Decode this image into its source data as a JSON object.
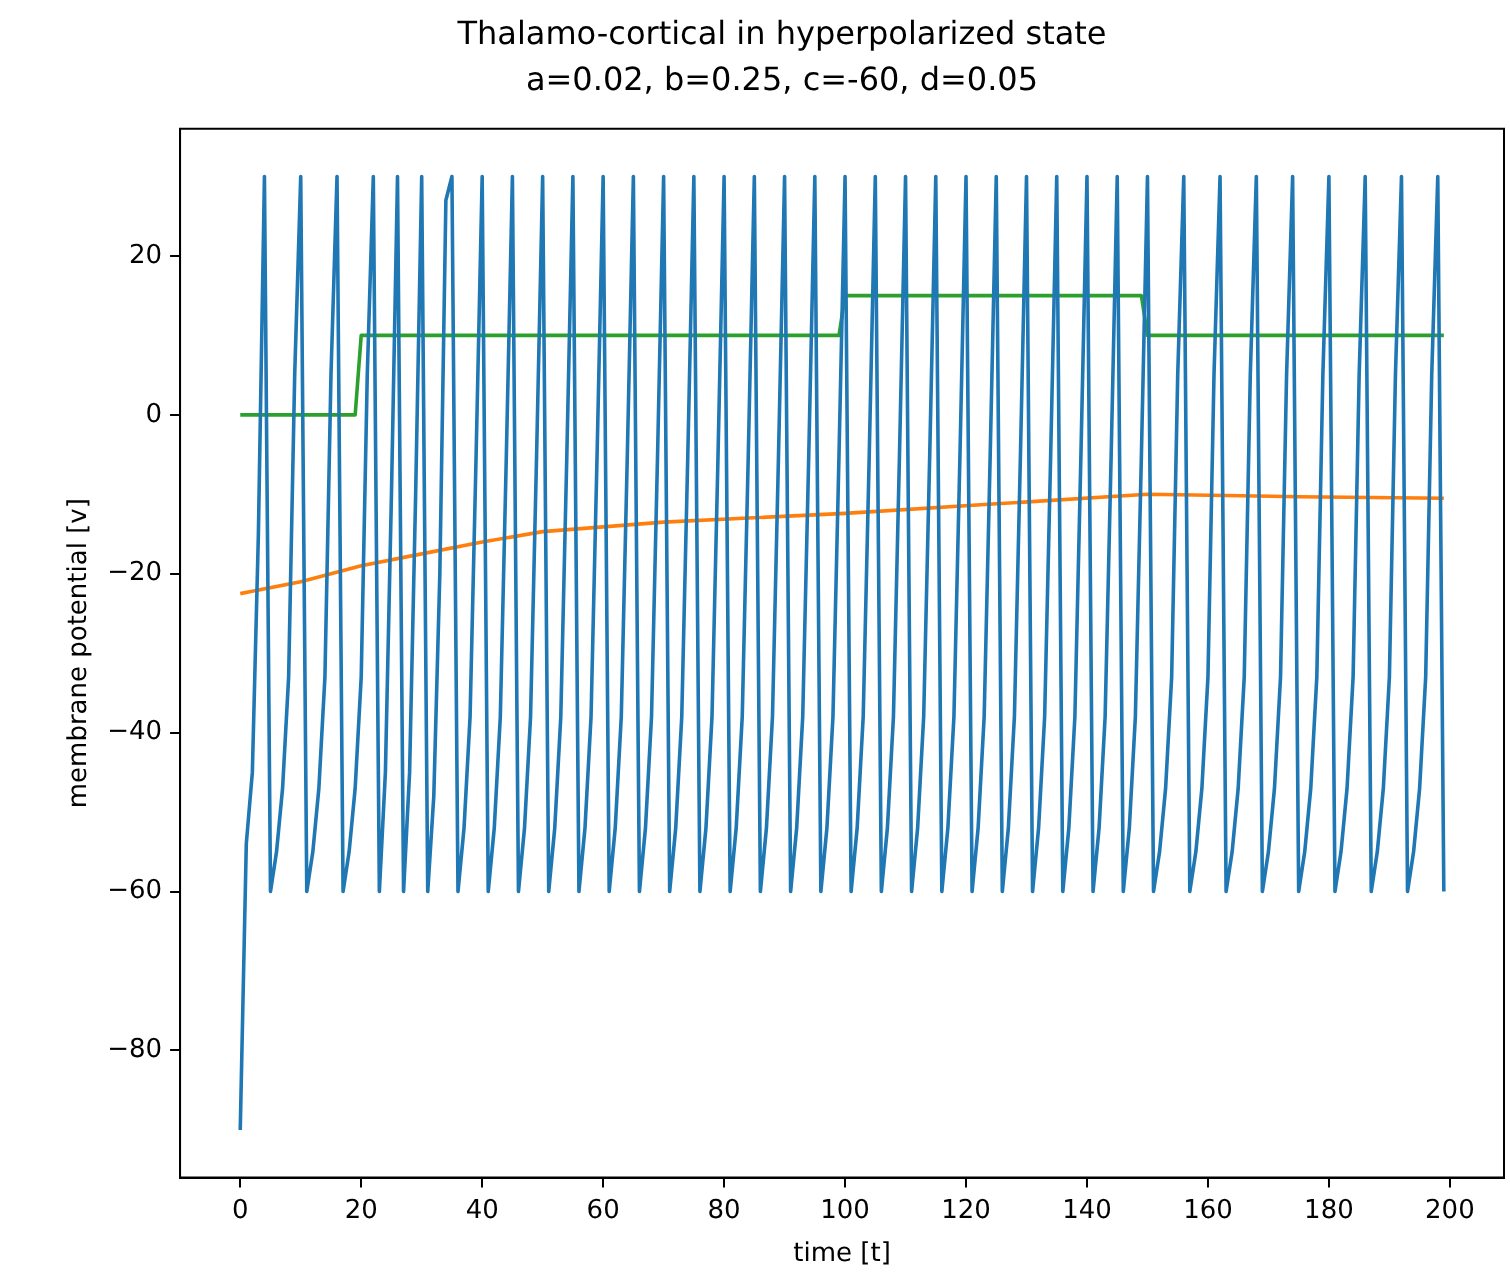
{
  "chart_data": {
    "type": "line",
    "title": "Thalamo-cortical in hyperpolarized state",
    "subtitle": "a=0.02, b=0.25, c=-60, d=0.05",
    "xlabel": "time [t]",
    "ylabel": "membrane potential [v]",
    "x": [
      0,
      1,
      2,
      3,
      4,
      5,
      6,
      7,
      8,
      9,
      10,
      11,
      12,
      13,
      14,
      15,
      16,
      17,
      18,
      19,
      20,
      21,
      22,
      23,
      24,
      25,
      26,
      27,
      28,
      29,
      30,
      31,
      32,
      33,
      34,
      35,
      36,
      37,
      38,
      39,
      40,
      41,
      42,
      43,
      44,
      45,
      46,
      47,
      48,
      49,
      50,
      51,
      52,
      53,
      54,
      55,
      56,
      57,
      58,
      59,
      60,
      61,
      62,
      63,
      64,
      65,
      66,
      67,
      68,
      69,
      70,
      71,
      72,
      73,
      74,
      75,
      76,
      77,
      78,
      79,
      80,
      81,
      82,
      83,
      84,
      85,
      86,
      87,
      88,
      89,
      90,
      91,
      92,
      93,
      94,
      95,
      96,
      97,
      98,
      99,
      100,
      101,
      102,
      103,
      104,
      105,
      106,
      107,
      108,
      109,
      110,
      111,
      112,
      113,
      114,
      115,
      116,
      117,
      118,
      119,
      120,
      121,
      122,
      123,
      124,
      125,
      126,
      127,
      128,
      129,
      130,
      131,
      132,
      133,
      134,
      135,
      136,
      137,
      138,
      139,
      140,
      141,
      142,
      143,
      144,
      145,
      146,
      147,
      148,
      149,
      150,
      151,
      152,
      153,
      154,
      155,
      156,
      157,
      158,
      159,
      160,
      161,
      162,
      163,
      164,
      165,
      166,
      167,
      168,
      169,
      170,
      171,
      172,
      173,
      174,
      175,
      176,
      177,
      178,
      179,
      180,
      181,
      182,
      183,
      184,
      185,
      186,
      187,
      188,
      189,
      190,
      191,
      192,
      193,
      194,
      195,
      196,
      197,
      198,
      199
    ],
    "series": [
      {
        "color": "#1f77b4",
        "values": [
          -90,
          -54,
          -45,
          -15,
          30,
          -60,
          -55,
          -47,
          -33,
          5,
          30,
          -60,
          -55,
          -47,
          -33,
          5,
          30,
          -60,
          -55,
          -47,
          -33,
          5,
          30,
          -60,
          -45,
          -10,
          30,
          -60,
          -45,
          -10,
          30,
          -60,
          -48,
          -20,
          27,
          30,
          -60,
          -52,
          -38,
          -5,
          30,
          -60,
          -52,
          -38,
          -5,
          30,
          -60,
          -52,
          -38,
          -5,
          30,
          -60,
          -52,
          -38,
          -5,
          30,
          -60,
          -52,
          -38,
          -5,
          30,
          -60,
          -52,
          -38,
          -5,
          30,
          -60,
          -52,
          -38,
          -5,
          30,
          -60,
          -52,
          -38,
          -5,
          30,
          -60,
          -52,
          -38,
          -5,
          30,
          -60,
          -52,
          -38,
          -5,
          30,
          -60,
          -52,
          -38,
          -5,
          30,
          -60,
          -52,
          -38,
          -5,
          30,
          -60,
          -52,
          -38,
          -5,
          30,
          -60,
          -52,
          -38,
          -5,
          30,
          -60,
          -52,
          -38,
          -5,
          30,
          -60,
          -52,
          -38,
          -5,
          30,
          -60,
          -52,
          -38,
          -5,
          30,
          -60,
          -52,
          -38,
          -5,
          30,
          -60,
          -52,
          -38,
          -5,
          30,
          -60,
          -52,
          -38,
          -5,
          30,
          -60,
          -52,
          -38,
          -5,
          30,
          -60,
          -52,
          -38,
          -5,
          30,
          -60,
          -52,
          -38,
          -5,
          30,
          -60,
          -55,
          -47,
          -33,
          5,
          30,
          -60,
          -55,
          -47,
          -33,
          5,
          30,
          -60,
          -55,
          -47,
          -33,
          5,
          30,
          -60,
          -55,
          -47,
          -33,
          5,
          30,
          -60,
          -55,
          -47,
          -33,
          5,
          30,
          -60,
          -55,
          -47,
          -33,
          5,
          30,
          -60,
          -55,
          -47,
          -33,
          5,
          30,
          -60,
          -55,
          -47,
          -33,
          5,
          30,
          -60
        ]
      },
      {
        "color": "#ff7f0e",
        "x": [
          0,
          10,
          20,
          30,
          40,
          50,
          70,
          100,
          125,
          150,
          175,
          199
        ],
        "values": [
          -22.5,
          -21,
          -19,
          -17.5,
          -16,
          -14.7,
          -13.5,
          -12.4,
          -11.2,
          -10,
          -10.3,
          -10.5
        ]
      },
      {
        "color": "#2ca02c",
        "x": [
          0,
          19,
          20,
          99,
          100,
          149,
          150,
          199
        ],
        "values": [
          0,
          0,
          10,
          10,
          15,
          15,
          10,
          10
        ]
      }
    ],
    "xlim": [
      -9.95,
      208.95
    ],
    "ylim": [
      -96,
      36
    ],
    "xticks": [
      0,
      20,
      40,
      60,
      80,
      100,
      120,
      140,
      160,
      180,
      200
    ],
    "yticks": [
      -80,
      -60,
      -40,
      -20,
      0,
      20
    ]
  }
}
